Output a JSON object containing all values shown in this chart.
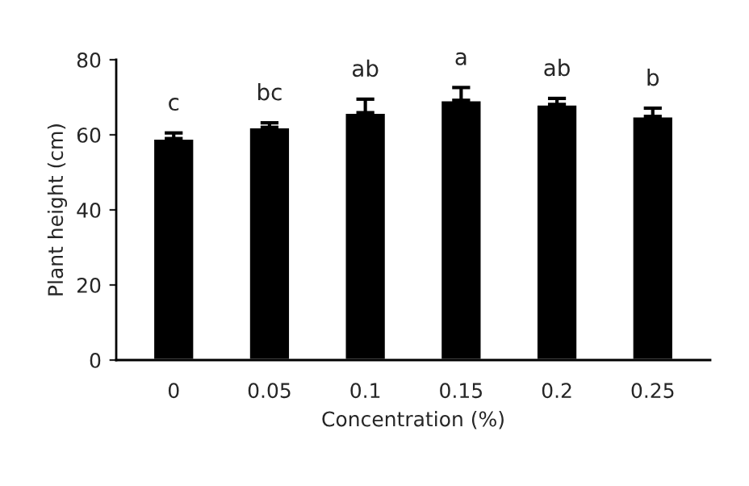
{
  "chart_data": {
    "type": "bar",
    "xlabel": "Concentration (%)",
    "ylabel": "Plant height (cm)",
    "categories": [
      "0",
      "0.05",
      "0.1",
      "0.15",
      "0.2",
      "0.25"
    ],
    "values": [
      59,
      62,
      65.9,
      69.2,
      68.1,
      64.9
    ],
    "color": "#000000",
    "errors": [
      [
        59,
        60.5
      ],
      [
        62,
        63.2
      ],
      [
        65.9,
        69.5
      ],
      [
        69.2,
        72.6
      ],
      [
        68.1,
        69.7
      ],
      [
        64.9,
        67.1
      ]
    ],
    "ylim": [
      0,
      80
    ],
    "yticks": [
      0,
      20,
      40,
      60,
      80
    ],
    "grid": false,
    "annotations": [
      {
        "text": "c",
        "x": "0",
        "y": 60.5
      },
      {
        "text": "bc",
        "x": "0.05",
        "y": 63.2
      },
      {
        "text": "ab",
        "x": "0.1",
        "y": 69.5
      },
      {
        "text": "a",
        "x": "0.15",
        "y": 72.6
      },
      {
        "text": "ab",
        "x": "0.2",
        "y": 69.7
      },
      {
        "text": "b",
        "x": "0.25",
        "y": 67.1
      }
    ]
  }
}
